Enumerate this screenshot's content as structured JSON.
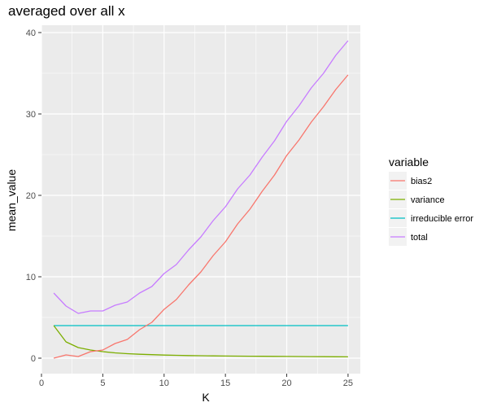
{
  "chart_data": {
    "type": "line",
    "title": "averaged over all x",
    "xlabel": "K",
    "ylabel": "mean_value",
    "xlim": [
      0,
      26
    ],
    "ylim": [
      -1.9,
      40.9
    ],
    "xticks": [
      0,
      5,
      10,
      15,
      20,
      25
    ],
    "yticks": [
      0,
      10,
      20,
      30,
      40
    ],
    "grid": true,
    "legend": {
      "title": "variable",
      "position": "right"
    },
    "x": [
      1,
      2,
      3,
      4,
      5,
      6,
      7,
      8,
      9,
      10,
      11,
      12,
      13,
      14,
      15,
      16,
      17,
      18,
      19,
      20,
      21,
      22,
      23,
      24,
      25
    ],
    "series": [
      {
        "name": "bias2",
        "color": "#F8766D",
        "values": [
          0.0,
          0.4,
          0.2,
          0.8,
          1.0,
          1.8,
          2.3,
          3.5,
          4.4,
          6.0,
          7.2,
          9.0,
          10.6,
          12.6,
          14.3,
          16.5,
          18.3,
          20.5,
          22.5,
          24.9,
          26.8,
          29.0,
          30.9,
          33.0,
          34.8
        ]
      },
      {
        "name": "variance",
        "color": "#7CAE00",
        "values": [
          4.0,
          2.0,
          1.3,
          1.0,
          0.8,
          0.65,
          0.55,
          0.48,
          0.43,
          0.38,
          0.35,
          0.32,
          0.3,
          0.28,
          0.26,
          0.25,
          0.24,
          0.23,
          0.22,
          0.21,
          0.2,
          0.19,
          0.18,
          0.17,
          0.16
        ]
      },
      {
        "name": "irreducible error",
        "color": "#00BFC4",
        "values": [
          4,
          4,
          4,
          4,
          4,
          4,
          4,
          4,
          4,
          4,
          4,
          4,
          4,
          4,
          4,
          4,
          4,
          4,
          4,
          4,
          4,
          4,
          4,
          4,
          4
        ]
      },
      {
        "name": "total",
        "color": "#C77CFF",
        "values": [
          8.0,
          6.4,
          5.5,
          5.8,
          5.8,
          6.5,
          6.9,
          8.0,
          8.8,
          10.4,
          11.5,
          13.3,
          14.9,
          16.9,
          18.6,
          20.8,
          22.5,
          24.7,
          26.7,
          29.1,
          31.0,
          33.2,
          35.0,
          37.2,
          39.0
        ]
      }
    ]
  }
}
